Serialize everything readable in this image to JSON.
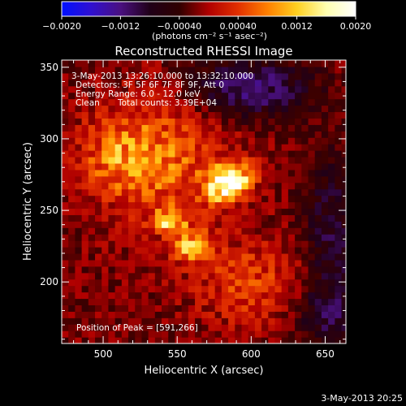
{
  "colorbar": {
    "ticks": [
      "−0.0020",
      "−0.0012",
      "−0.00040",
      "0.00040",
      "0.0012",
      "0.0020"
    ],
    "unit_label": "(photons cm⁻² s⁻¹ asec⁻²)",
    "stops": [
      "#0010ff",
      "#3010d0",
      "#4a1080",
      "#200018",
      "#300000",
      "#b00000",
      "#e23000",
      "#ff8000",
      "#ffd020",
      "#ffffb0",
      "#ffffff"
    ]
  },
  "chart_data": {
    "type": "heatmap",
    "title": "Reconstructed RHESSI Image",
    "xlabel": "Heliocentric X (arcsec)",
    "ylabel": "Heliocentric Y (arcsec)",
    "xlim": [
      472,
      664
    ],
    "ylim": [
      157,
      355
    ],
    "xticks": [
      500,
      550,
      600,
      650
    ],
    "yticks": [
      200,
      250,
      300,
      350
    ],
    "colorbar_range": [
      -0.002,
      0.002
    ],
    "sources": [
      {
        "x": 585,
        "y": 270,
        "sx": 11,
        "sy": 8,
        "amp": 0.002,
        "angle": 30
      },
      {
        "x": 560,
        "y": 225,
        "sx": 9,
        "sy": 7,
        "amp": 0.00135,
        "angle": 0
      },
      {
        "x": 546,
        "y": 243,
        "sx": 8,
        "sy": 6,
        "amp": 0.0011,
        "angle": 0
      },
      {
        "x": 540,
        "y": 285,
        "sx": 30,
        "sy": 30,
        "amp": 0.0008,
        "angle": 0
      },
      {
        "x": 510,
        "y": 290,
        "sx": 18,
        "sy": 18,
        "amp": 0.0006,
        "angle": 0
      },
      {
        "x": 600,
        "y": 200,
        "sx": 28,
        "sy": 22,
        "amp": 0.00055,
        "angle": 0
      },
      {
        "x": 600,
        "y": 335,
        "sx": 28,
        "sy": 14,
        "amp": -0.0009,
        "angle": 0
      },
      {
        "x": 655,
        "y": 230,
        "sx": 14,
        "sy": 40,
        "amp": -0.0006,
        "angle": 0
      },
      {
        "x": 648,
        "y": 178,
        "sx": 16,
        "sy": 14,
        "amp": -0.0005,
        "angle": 0
      }
    ],
    "annotations": {
      "time_range": "3-May-2013 13:26:10.000 to 13:32:10.000",
      "detectors": "Detectors: 3F 5F 6F 7F 8F 9F, Att 0",
      "energy_range": "Energy Range: 6.0 - 12.0 keV",
      "method": "Clean",
      "total_counts": "Total counts: 3.39E+04",
      "peak_position": "Position of Peak = [591,266]"
    }
  },
  "footer": {
    "timestamp": "3-May-2013 20:25"
  }
}
